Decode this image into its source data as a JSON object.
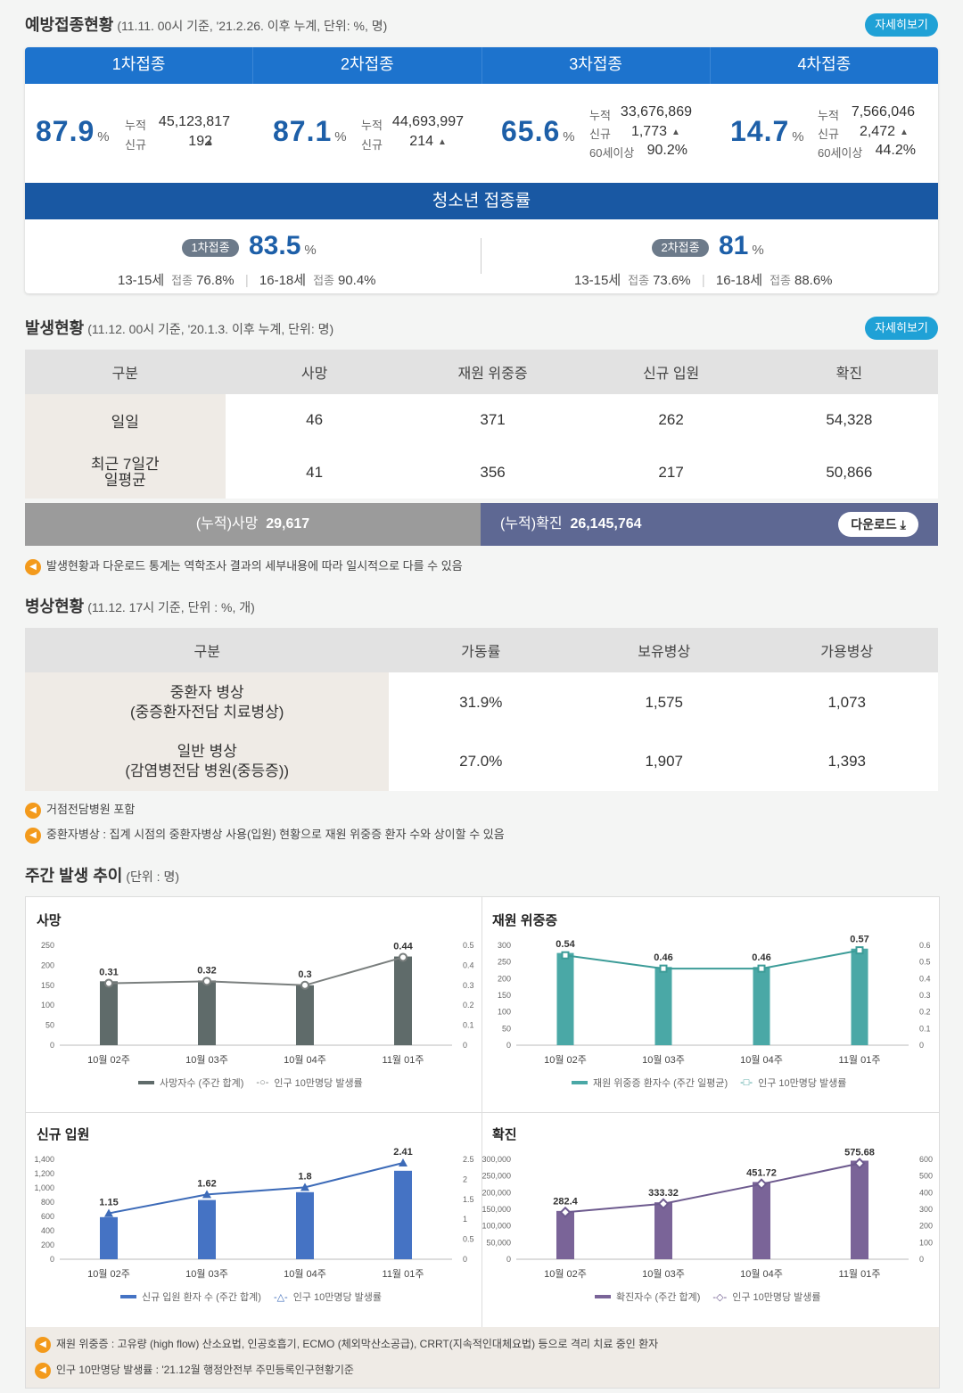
{
  "vaccination": {
    "title": "예방접종현황",
    "subtitle": "(11.11. 00시 기준, '21.2.26. 이후 누계, 단위: %, 명)",
    "more_label": "자세히보기",
    "doses": [
      {
        "label": "1차접종",
        "rate": "87.9",
        "unit": "%",
        "cum_label": "누적",
        "cum": "45,123,817",
        "new_label": "신규",
        "new": "192"
      },
      {
        "label": "2차접종",
        "rate": "87.1",
        "unit": "%",
        "cum_label": "누적",
        "cum": "44,693,997",
        "new_label": "신규",
        "new": "214"
      },
      {
        "label": "3차접종",
        "rate": "65.6",
        "unit": "%",
        "cum_label": "누적",
        "cum": "33,676,869",
        "new_label": "신규",
        "new": "1,773",
        "senior_label": "60세이상",
        "senior": "90.2%"
      },
      {
        "label": "4차접종",
        "rate": "14.7",
        "unit": "%",
        "cum_label": "누적",
        "cum": "7,566,046",
        "new_label": "신규",
        "new": "2,472",
        "senior_label": "60세이상",
        "senior": "44.2%"
      }
    ],
    "youth": {
      "title": "청소년 접종률",
      "first": {
        "pill": "1차접종",
        "rate": "83.5",
        "unit": "%",
        "a_age": "13-15세",
        "a_lbl": "접종",
        "a_val": "76.8%",
        "b_age": "16-18세",
        "b_lbl": "접종",
        "b_val": "90.4%"
      },
      "second": {
        "pill": "2차접종",
        "rate": "81",
        "unit": "%",
        "a_age": "13-15세",
        "a_lbl": "접종",
        "a_val": "73.6%",
        "b_age": "16-18세",
        "b_lbl": "접종",
        "b_val": "88.6%"
      }
    }
  },
  "occurrence": {
    "title": "발생현황",
    "subtitle": "(11.12. 00시 기준, '20.1.3. 이후 누계, 단위: 명)",
    "more_label": "자세히보기",
    "headers": [
      "구분",
      "사망",
      "재원 위중증",
      "신규 입원",
      "확진"
    ],
    "rows": [
      {
        "label": "일일",
        "values": [
          "46",
          "371",
          "262",
          "54,328"
        ]
      },
      {
        "label": "최근 7일간\n일평균",
        "values": [
          "41",
          "356",
          "217",
          "50,866"
        ]
      }
    ],
    "cum_death_label": "(누적)사망",
    "cum_death": "29,617",
    "cum_conf_label": "(누적)확진",
    "cum_conf": "26,145,764",
    "download_label": "다운로드",
    "note": "발생현황과 다운로드 통계는 역학조사 결과의 세부내용에 따라 일시적으로 다를 수 있음"
  },
  "beds": {
    "title": "병상현황",
    "subtitle": "(11.12. 17시 기준, 단위 : %, 개)",
    "headers": [
      "구분",
      "가동률",
      "보유병상",
      "가용병상"
    ],
    "rows": [
      {
        "label1": "중환자 병상",
        "label2": "(중증환자전담 치료병상)",
        "values": [
          "31.9%",
          "1,575",
          "1,073"
        ]
      },
      {
        "label1": "일반 병상",
        "label2": "(감염병전담 병원(중등증))",
        "values": [
          "27.0%",
          "1,907",
          "1,393"
        ]
      }
    ],
    "notes": [
      "거점전담병원 포함",
      "중환자병상 : 집계 시점의 중환자병상 사용(입원) 현황으로 재원 위중증 환자 수와 상이할 수 있음"
    ]
  },
  "weekly": {
    "title": "주간 발생 추이",
    "subtitle": "(단위 : 명)",
    "footnotes": [
      "재원 위중증 : 고유량 (high flow) 산소요법, 인공호흡기, ECMO (체외막산소공급), CRRT(지속적인대체요법) 등으로 격리 치료 중인 환자",
      "인구 10만명당 발생률 : '21.12월 행정안전부 주민등록인구현황기준"
    ]
  },
  "chart_data": [
    {
      "type": "bar",
      "title": "사망",
      "categories": [
        "10월 02주",
        "10월 03주",
        "10월 04주",
        "11월 01주"
      ],
      "series": [
        {
          "name": "사망자수 (주간 합계)",
          "type": "bar",
          "values": [
            160,
            162,
            150,
            222
          ],
          "color": "#5f6b6a"
        },
        {
          "name": "인구 10만명당 발생률",
          "type": "line",
          "axis": "right",
          "values": [
            0.31,
            0.32,
            0.3,
            0.44
          ],
          "color": "#7a7f7e"
        }
      ],
      "ylim": [
        0,
        250
      ],
      "yticks": [
        0,
        50,
        100,
        150,
        200,
        250
      ],
      "y2lim": [
        0,
        0.5
      ],
      "y2ticks": [
        0,
        0.1,
        0.2,
        0.3,
        0.4,
        0.5
      ]
    },
    {
      "type": "bar",
      "title": "재원 위중증",
      "categories": [
        "10월 02주",
        "10월 03주",
        "10월 04주",
        "11월 01주"
      ],
      "series": [
        {
          "name": "재원 위중증 환자수 (주간 일평균)",
          "type": "bar",
          "values": [
            277,
            235,
            235,
            290
          ],
          "color": "#4aa8a6"
        },
        {
          "name": "인구 10만명당 발생률",
          "type": "line",
          "axis": "right",
          "values": [
            0.54,
            0.46,
            0.46,
            0.57
          ],
          "color": "#3c9c98"
        }
      ],
      "ylim": [
        0,
        300
      ],
      "yticks": [
        0,
        50,
        100,
        150,
        200,
        250,
        300
      ],
      "y2lim": [
        0,
        0.6
      ],
      "y2ticks": [
        0,
        0.1,
        0.2,
        0.3,
        0.4,
        0.5,
        0.6
      ]
    },
    {
      "type": "bar",
      "title": "신규 입원",
      "categories": [
        "10월 02주",
        "10월 03주",
        "10월 04주",
        "11월 01주"
      ],
      "series": [
        {
          "name": "신규 입원 환자 수 (주간 합계)",
          "type": "bar",
          "values": [
            590,
            830,
            940,
            1240
          ],
          "color": "#4573c4"
        },
        {
          "name": "인구 10만명당 발생률",
          "type": "line",
          "axis": "right",
          "values": [
            1.15,
            1.62,
            1.8,
            2.41
          ],
          "color": "#3d6bb8"
        }
      ],
      "ylim": [
        0,
        1400
      ],
      "yticks": [
        0,
        200,
        400,
        600,
        800,
        1000,
        1200,
        1400
      ],
      "y2lim": [
        0,
        2.5
      ],
      "y2ticks": [
        0,
        0.5,
        1,
        1.5,
        2,
        2.5
      ]
    },
    {
      "type": "bar",
      "title": "확진",
      "categories": [
        "10월 02주",
        "10월 03주",
        "10월 04주",
        "11월 01주"
      ],
      "series": [
        {
          "name": "확진자수 (주간 합계)",
          "type": "bar",
          "values": [
            145000,
            171000,
            232000,
            296000
          ],
          "color": "#7a6498"
        },
        {
          "name": "인구 10만명당 발생률",
          "type": "line",
          "axis": "right",
          "values": [
            282.4,
            333.32,
            451.72,
            575.68
          ],
          "color": "#6d5a8e"
        }
      ],
      "ylim": [
        0,
        300000
      ],
      "yticks": [
        0,
        50000,
        100000,
        150000,
        200000,
        250000,
        300000
      ],
      "y2lim": [
        0,
        600
      ],
      "y2ticks": [
        0,
        100,
        200,
        300,
        400,
        500,
        600
      ]
    }
  ]
}
